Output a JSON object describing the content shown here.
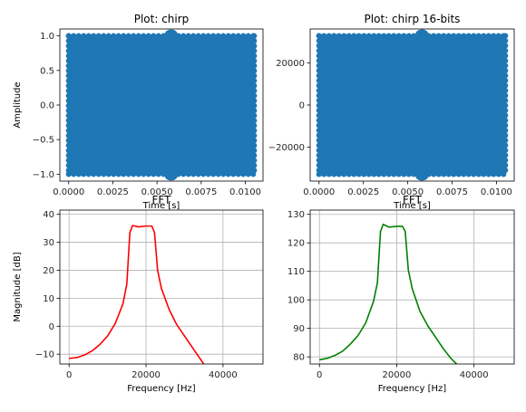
{
  "chart_data": [
    {
      "type": "scatter",
      "title": "Plot: chirp",
      "xlabel": "Time [s]",
      "ylabel": "Amplitude",
      "xlim": [
        -0.0005,
        0.011
      ],
      "ylim": [
        -1.1,
        1.1
      ],
      "xticks": [
        0.0,
        0.0025,
        0.005,
        0.0075,
        0.01
      ],
      "xtick_labels": [
        "0.0000",
        "0.0025",
        "0.0050",
        "0.0075",
        "0.0100"
      ],
      "yticks": [
        -1.0,
        -0.5,
        0.0,
        0.5,
        1.0
      ],
      "ytick_labels": [
        "−1.0",
        "−0.5",
        "0.0",
        "0.5",
        "1.0"
      ],
      "x_range": [
        0.0,
        0.0105
      ],
      "amplitude": 1.0,
      "color": "#1f77b4",
      "grid": false,
      "description_points": "dense chirp samples filling the range"
    },
    {
      "type": "scatter",
      "title": "Plot: chirp 16-bits",
      "xlabel": "Time [s]",
      "ylabel": "",
      "xlim": [
        -0.0005,
        0.011
      ],
      "ylim": [
        -36000,
        36000
      ],
      "xticks": [
        0.0,
        0.0025,
        0.005,
        0.0075,
        0.01
      ],
      "xtick_labels": [
        "0.0000",
        "0.0025",
        "0.0050",
        "0.0075",
        "0.0100"
      ],
      "yticks": [
        -20000,
        0,
        20000
      ],
      "ytick_labels": [
        "−20000",
        "0",
        "20000"
      ],
      "x_range": [
        0.0,
        0.0105
      ],
      "amplitude": 32767,
      "color": "#1f77b4",
      "grid": false
    },
    {
      "type": "line",
      "title": "FFT",
      "xlabel": "Frequency [Hz]",
      "ylabel": "Magnitude [dB]",
      "xlim": [
        -2400,
        50400
      ],
      "ylim": [
        -13.5,
        41.5
      ],
      "xticks": [
        0,
        20000,
        40000
      ],
      "xtick_labels": [
        "0",
        "20000",
        "40000"
      ],
      "yticks": [
        -10,
        0,
        10,
        20,
        30,
        40
      ],
      "ytick_labels": [
        "−10",
        "0",
        "10",
        "20",
        "30",
        "40"
      ],
      "grid": true,
      "color": "#ff0000",
      "x": [
        0,
        2000,
        4000,
        6000,
        8000,
        10000,
        12000,
        14000,
        15000,
        15800,
        16500,
        18000,
        20000,
        21500,
        22200,
        23000,
        24000,
        26000,
        28000,
        30000,
        32000,
        34000,
        35000
      ],
      "y": [
        -11.5,
        -11.2,
        -10.3,
        -8.8,
        -6.5,
        -3.5,
        1.0,
        8.0,
        15.0,
        33.5,
        36.0,
        35.5,
        35.8,
        35.8,
        33.5,
        20.0,
        13.5,
        6.0,
        0.5,
        -3.5,
        -7.5,
        -11.5,
        -13.5
      ]
    },
    {
      "type": "line",
      "title": "FFT",
      "xlabel": "Frequency [Hz]",
      "ylabel": "",
      "xlim": [
        -2400,
        50400
      ],
      "ylim": [
        77.5,
        131.5
      ],
      "xticks": [
        0,
        20000,
        40000
      ],
      "xtick_labels": [
        "0",
        "20000",
        "40000"
      ],
      "yticks": [
        80,
        90,
        100,
        110,
        120,
        130
      ],
      "ytick_labels": [
        "80",
        "90",
        "100",
        "110",
        "120",
        "130"
      ],
      "grid": true,
      "color": "#008000",
      "x": [
        0,
        2000,
        4000,
        6000,
        8000,
        10000,
        12000,
        14000,
        15000,
        15800,
        16500,
        18000,
        20000,
        21500,
        22200,
        23000,
        24000,
        26000,
        28000,
        30000,
        32000,
        34000,
        35500
      ],
      "y": [
        79.0,
        79.5,
        80.5,
        82.0,
        84.5,
        87.5,
        92.0,
        99.5,
        106.0,
        124.0,
        126.5,
        125.5,
        125.8,
        125.8,
        124.0,
        110.5,
        104.0,
        96.0,
        91.0,
        87.0,
        83.0,
        79.5,
        77.5
      ]
    }
  ]
}
